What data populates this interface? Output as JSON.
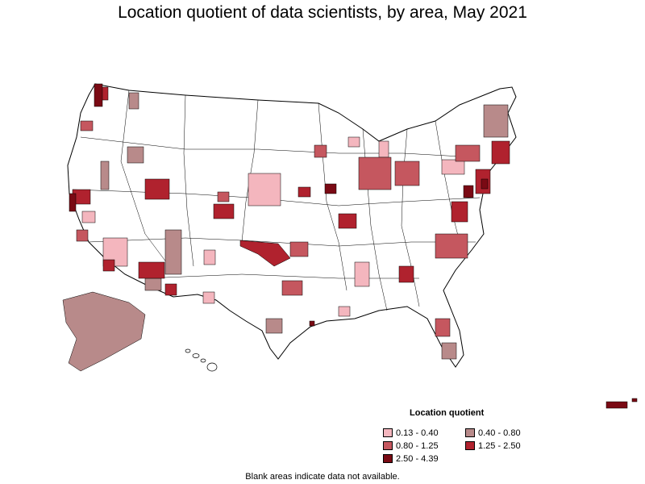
{
  "title": "Location quotient of data scientists, by area, May 2021",
  "legend": {
    "title": "Location quotient",
    "items": [
      {
        "label": "0.13 - 0.40",
        "color": "#f4b6be"
      },
      {
        "label": "0.40 - 0.80",
        "color": "#b88a8a"
      },
      {
        "label": "0.80 - 1.25",
        "color": "#c5575f"
      },
      {
        "label": "1.25 - 2.50",
        "color": "#b0222e"
      },
      {
        "label": "2.50 - 4.39",
        "color": "#7a0a14"
      }
    ]
  },
  "footnote": "Blank areas indicate data not available."
}
